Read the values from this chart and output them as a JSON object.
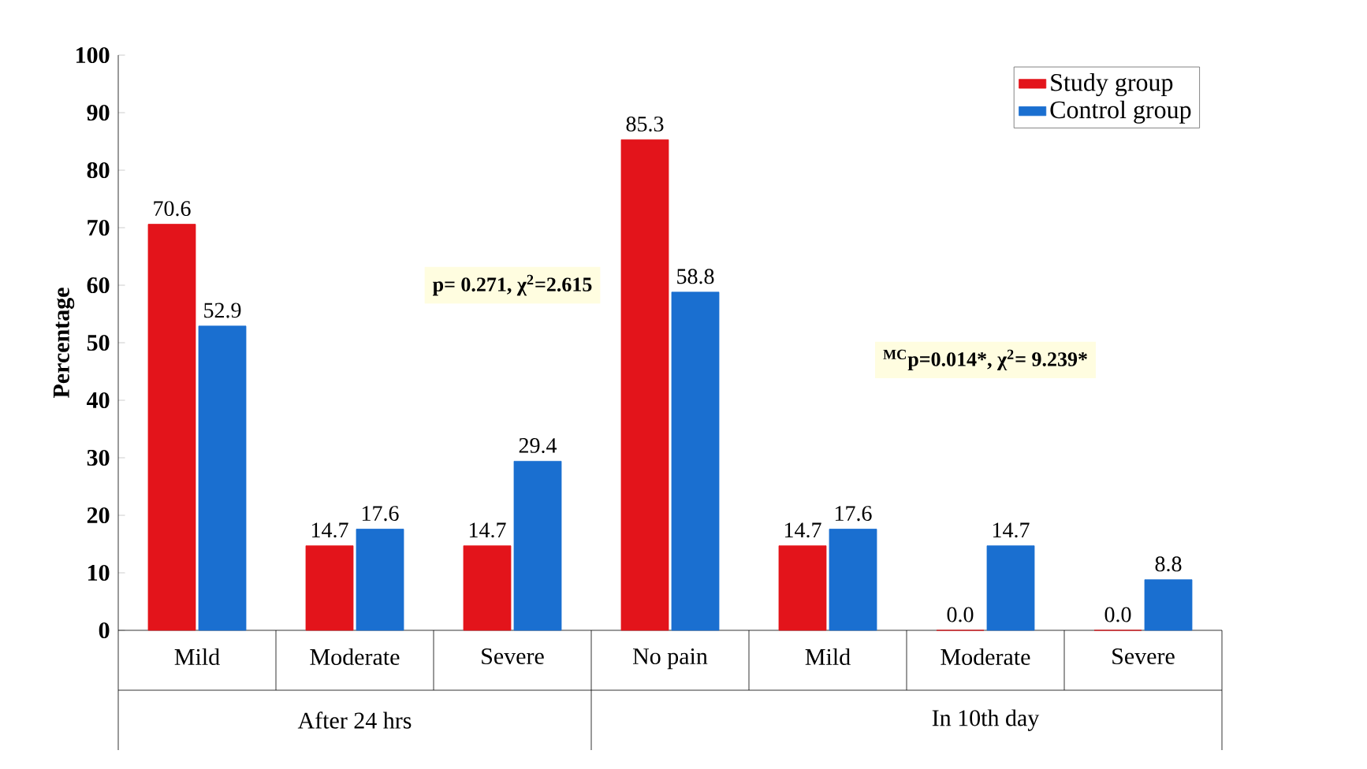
{
  "chart_data": {
    "type": "bar",
    "ylabel": "Percentage",
    "categories": [
      "Mild",
      "Moderate",
      "Severe",
      "No pain",
      "Mild",
      "Moderate",
      "Severe"
    ],
    "series": [
      {
        "name": "Study group",
        "color": "#e3141b",
        "values": [
          70.6,
          14.7,
          14.7,
          85.3,
          14.7,
          0.0,
          0.0
        ],
        "value_labels": [
          "70.6",
          "14.7",
          "14.7",
          "85.3",
          "14.7",
          "0.0",
          "0.0"
        ]
      },
      {
        "name": "Control group",
        "color": "#1a6fd0",
        "values": [
          52.9,
          17.6,
          29.4,
          58.8,
          17.6,
          14.7,
          8.8
        ],
        "value_labels": [
          "52.9",
          "17.6",
          "29.4",
          "58.8",
          "17.6",
          "14.7",
          "8.8"
        ]
      }
    ],
    "annotations": [
      "p= 0.271, χ$^{2}$=2.615",
      "$^{MC}$p=0.014*, χ$^{2}$= 9.239*",
      "After 24 hrs",
      "In 10th day"
    ],
    "ylim": [
      0,
      100
    ],
    "yticks": [
      0,
      10,
      20,
      30,
      40,
      50,
      60,
      70,
      80,
      90,
      100
    ],
    "legend": "top right",
    "grid": false
  }
}
